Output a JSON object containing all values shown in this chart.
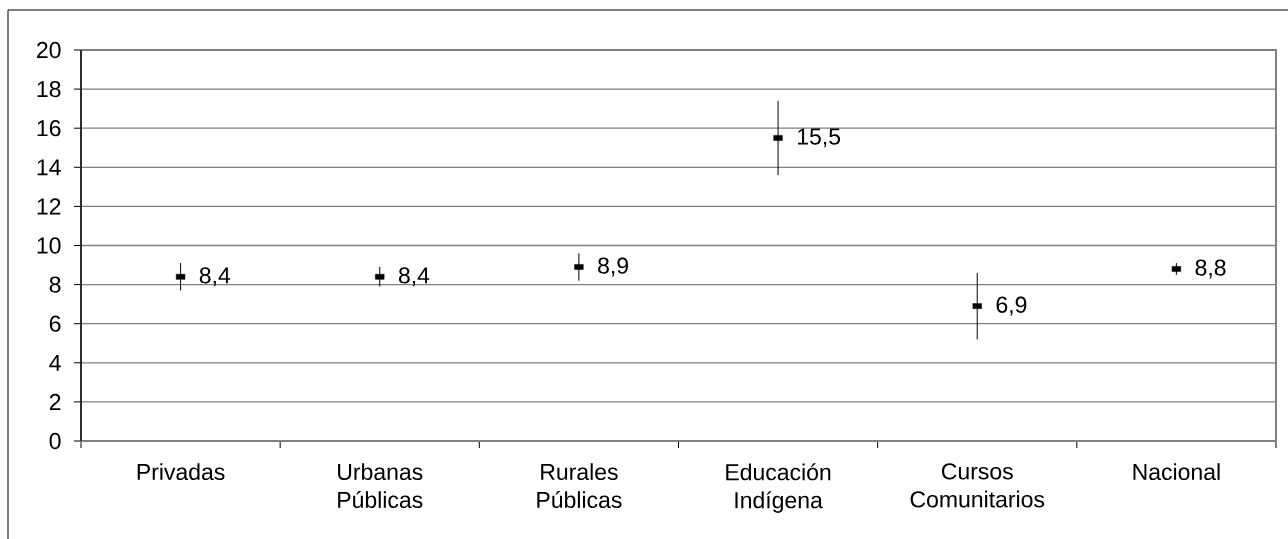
{
  "chart_data": {
    "type": "scatter",
    "categories": [
      "Privadas",
      "Urbanas Públicas",
      "Rurales Públicas",
      "Educación Indígena",
      "Cursos Comunitarios",
      "Nacional"
    ],
    "values": [
      8.4,
      8.4,
      8.9,
      15.5,
      6.9,
      8.8
    ],
    "errors": [
      0.7,
      0.5,
      0.7,
      1.9,
      1.7,
      0.3
    ],
    "value_labels": [
      "8,4",
      "8,4",
      "8,9",
      "15,5",
      "6,9",
      "8,8"
    ],
    "color": "#000000",
    "marker": "square",
    "ylim": [
      0,
      20
    ],
    "yticks": [
      0,
      2,
      4,
      6,
      8,
      10,
      12,
      14,
      16,
      18,
      20
    ],
    "grid": "y"
  }
}
